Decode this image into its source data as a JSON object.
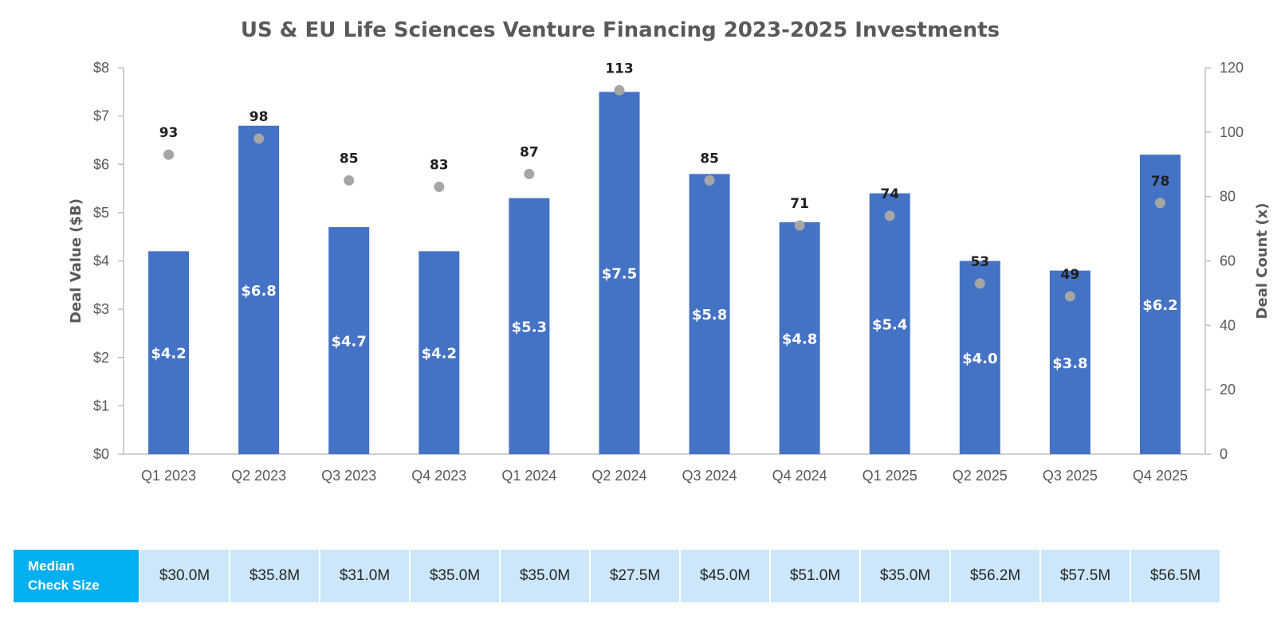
{
  "chart_data": {
    "type": "bar",
    "title": "US & EU Life Sciences Venture Financing 2023-2025 Investments",
    "categories": [
      "Q1 2023",
      "Q2 2023",
      "Q3 2023",
      "Q4 2023",
      "Q1 2024",
      "Q2 2024",
      "Q3 2024",
      "Q4 2024",
      "Q1 2025",
      "Q2 2025",
      "Q3 2025",
      "Q4 2025"
    ],
    "series": [
      {
        "type": "bar",
        "axis": "left",
        "values": [
          4.2,
          6.8,
          4.7,
          4.2,
          5.3,
          7.5,
          5.8,
          4.8,
          5.4,
          4.0,
          3.8,
          6.2
        ],
        "labels": [
          "$4.2",
          "$6.8",
          "$4.7",
          "$4.2",
          "$5.3",
          "$7.5",
          "$5.8",
          "$4.8",
          "$5.4",
          "$4.0",
          "$3.8",
          "$6.2"
        ],
        "color": "#4472c4"
      },
      {
        "type": "scatter",
        "axis": "right",
        "values": [
          93,
          98,
          85,
          83,
          87,
          113,
          85,
          71,
          74,
          53,
          49,
          78
        ],
        "labels": [
          "93",
          "98",
          "85",
          "83",
          "87",
          "113",
          "85",
          "71",
          "74",
          "53",
          "49",
          "78"
        ],
        "color": "#a6a6a6"
      }
    ],
    "ylabel": "Deal Value ($B)",
    "ylim": [
      0,
      8
    ],
    "yticks": [
      "$0",
      "$1",
      "$2",
      "$3",
      "$4",
      "$5",
      "$6",
      "$7",
      "$8"
    ],
    "y2label": "Deal Count (x)",
    "y2lim": [
      0,
      120
    ],
    "y2ticks": [
      "0",
      "20",
      "40",
      "60",
      "80",
      "100",
      "120"
    ],
    "grid": false,
    "legend": "none"
  },
  "median_table": {
    "header_line1": "Median",
    "header_line2": "Check Size",
    "values": [
      "$30.0M",
      "$35.8M",
      "$31.0M",
      "$35.0M",
      "$35.0M",
      "$27.5M",
      "$45.0M",
      "$51.0M",
      "$35.0M",
      "$56.2M",
      "$57.5M",
      "$56.5M"
    ]
  }
}
